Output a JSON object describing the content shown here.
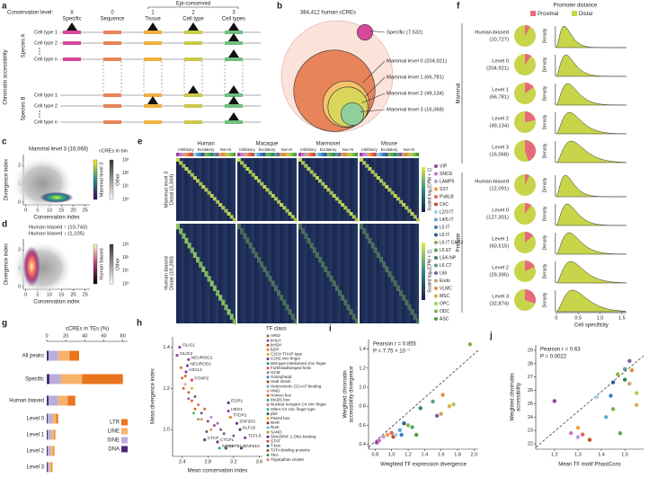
{
  "a": {
    "label": "a",
    "level_title": "Conservation level:",
    "epi": "Epi-conserved",
    "levels": [
      {
        "code": "X",
        "name": "Specific",
        "color": "#d8489a"
      },
      {
        "code": "0",
        "name": "Sequence",
        "color": "#e8845a"
      },
      {
        "code": "1",
        "name": "Tissue",
        "color": "#f0b040"
      },
      {
        "code": "2",
        "name": "Cell type",
        "color": "#c9c94a"
      },
      {
        "code": "3",
        "name": "Cell types",
        "color": "#6fbf80"
      }
    ],
    "species": [
      "Species A",
      "Species B"
    ],
    "cell_types": [
      "Cell type 1",
      "Cell type 2",
      "Cell type n"
    ],
    "y_label": "Chromatin accessibility"
  },
  "b": {
    "label": "b",
    "title": "384,412 human cCREs",
    "total": 384412,
    "outer_color": "#fbe3da",
    "circles": [
      {
        "label": "Mammal level 0 (204,921)",
        "count": 204921,
        "color": "#e8845a"
      },
      {
        "label": "Mammal level 1 (66,781)",
        "count": 66781,
        "color": "#f5c26b"
      },
      {
        "label": "Mammal level 2 (49,134)",
        "count": 49134,
        "color": "#d9d65b"
      },
      {
        "label": "Mammal level 3 (16,068)",
        "count": 16068,
        "color": "#8fcf9c"
      },
      {
        "label": "Specific (7,532)",
        "count": 7532,
        "color": "#d8489a"
      }
    ]
  },
  "c": {
    "label": "c",
    "title": "Mammal level 3 (16,068)",
    "x_label": "Conservation index",
    "y_label": "Divergence index",
    "xlim": [
      -1,
      27
    ],
    "ylim": [
      -0.15,
      2.6
    ],
    "xticks": [
      0,
      5,
      10,
      15,
      20,
      25
    ],
    "yticks": [
      0,
      1,
      2
    ],
    "colorbar_title": "cCREs in bin",
    "colorbars": [
      "Mammal level 3",
      "Other"
    ],
    "colorbar_ticks": [
      "10³",
      "10²",
      "10¹",
      "10⁰"
    ]
  },
  "d": {
    "label": "d",
    "titles": [
      "Human biased ↑ (10,743)",
      "Human biased ↓ (1,105)"
    ],
    "x_label": "Conservation index",
    "y_label": "Divergence index",
    "xlim": [
      -1,
      27
    ],
    "ylim": [
      -0.15,
      2.6
    ],
    "xticks": [
      0,
      5,
      10,
      15,
      20,
      25
    ],
    "yticks": [
      0,
      1,
      2
    ],
    "colorbars": [
      "Human biased",
      "Other"
    ],
    "colorbar_ticks": [
      "10³",
      "10²",
      "10¹",
      "10⁰"
    ]
  },
  "e": {
    "label": "e",
    "species": [
      "Human",
      "Macaque",
      "Marmoset",
      "Mouse"
    ],
    "groups": [
      "Inhibitory",
      "Excitatory",
      "Non-N"
    ],
    "blocks": [
      {
        "name": "Mammal level 3",
        "sub": "Distal (3,344)"
      },
      {
        "name": "Human biased",
        "sub": "Distal (10,280)"
      }
    ],
    "colorbar_label": "Scaled log₂[CPM + 1]",
    "cell_types": [
      {
        "name": "VIP",
        "color": "#9b3fa0"
      },
      {
        "name": "SNCG",
        "color": "#d46fc1"
      },
      {
        "name": "LAMP5",
        "color": "#b7a0d3"
      },
      {
        "name": "SST",
        "color": "#f29c3a"
      },
      {
        "name": "PVALB",
        "color": "#e8615a"
      },
      {
        "name": "ChC",
        "color": "#c94b2a"
      },
      {
        "name": "L2/3 IT",
        "color": "#9fd3e6"
      },
      {
        "name": "L4/5 IT",
        "color": "#5aa9d6"
      },
      {
        "name": "L5 IT",
        "color": "#3a7fbd"
      },
      {
        "name": "L6 IT",
        "color": "#2d5e9e"
      },
      {
        "name": "L6 IT CAR3",
        "color": "#8ab04a"
      },
      {
        "name": "L5 ET",
        "color": "#4bae62"
      },
      {
        "name": "L5/6 NP",
        "color": "#2f8a55"
      },
      {
        "name": "L6 CT",
        "color": "#5e9c8f"
      },
      {
        "name": "L6b",
        "color": "#7b5ea7"
      },
      {
        "name": "Endo",
        "color": "#c9a36a"
      },
      {
        "name": "VLMC",
        "color": "#e58a3a"
      },
      {
        "name": "MSC",
        "color": "#d9b341"
      },
      {
        "name": "OPC",
        "color": "#a6cf52"
      },
      {
        "name": "ODC",
        "color": "#79b648"
      },
      {
        "name": "ASC",
        "color": "#4e9d3a"
      }
    ]
  },
  "f": {
    "label": "f",
    "title": "Promoter distance",
    "legend": [
      {
        "name": "Proximal",
        "color": "#e86a7a"
      },
      {
        "name": "Distal",
        "color": "#c8d44a"
      }
    ],
    "groups": [
      {
        "name": "Mammal",
        "rows": [
          {
            "name": "Human-biased",
            "count": "(10,727)",
            "proximal": 8
          },
          {
            "name": "Level 0",
            "count": "(204,921)",
            "proximal": 10
          },
          {
            "name": "Level 1",
            "count": "(66,781)",
            "proximal": 15
          },
          {
            "name": "Level 2",
            "count": "(49,134)",
            "proximal": 22
          },
          {
            "name": "Level 3",
            "count": "(16,068)",
            "proximal": 45
          }
        ]
      },
      {
        "name": "Primate",
        "rows": [
          {
            "name": "Human-biased",
            "count": "(12,091)",
            "proximal": 7
          },
          {
            "name": "Level 0",
            "count": "(127,301)",
            "proximal": 10
          },
          {
            "name": "Level 1",
            "count": "(60,515)",
            "proximal": 14
          },
          {
            "name": "Level 2",
            "count": "(29,395)",
            "proximal": 18
          },
          {
            "name": "Level 3",
            "count": "(32,874)",
            "proximal": 30
          }
        ]
      }
    ],
    "density_label": "Density",
    "xlim": [
      -0.1,
      1.75
    ],
    "xticks": [
      0,
      0.5,
      {
        "value": 1,
        "label": "1.0"
      },
      1.5
    ],
    "x_label": "Cell specificity"
  },
  "g": {
    "label": "g",
    "title": "cCREs in TEs (%)",
    "xlim": [
      0,
      85
    ],
    "xticks": [
      0,
      20,
      40,
      60,
      80
    ],
    "categories": [
      "All peaks",
      "Specific",
      "Human biased",
      "Level 0",
      "Level 1",
      "Level 2",
      "Level 3"
    ],
    "series": [
      {
        "name": "DNA",
        "color": "#4b2a7a",
        "values": [
          2,
          3,
          2,
          1,
          1,
          1,
          1
        ]
      },
      {
        "name": "SINE",
        "color": "#b9aedb",
        "values": [
          10,
          12,
          10,
          5,
          4,
          3,
          2
        ]
      },
      {
        "name": "LINE",
        "color": "#f6b26b",
        "values": [
          12,
          22,
          10,
          4,
          3,
          3,
          2
        ]
      },
      {
        "name": "LTR",
        "color": "#e8741e",
        "values": [
          10,
          43,
          8,
          2,
          1,
          1,
          1
        ]
      }
    ]
  },
  "h": {
    "label": "h",
    "x_label": "Mean conservation index",
    "y_label": "Mean divergence index",
    "xlim": [
      2.25,
      3.65
    ],
    "ylim": [
      0.87,
      1.45
    ],
    "xticks": [
      2.4,
      2.8,
      3.2,
      3.6
    ],
    "yticks": [
      {
        "value": 1,
        "label": "1.0"
      },
      1.2,
      1.4
    ],
    "legend_title": "TF class",
    "classes": [
      {
        "name": "ARID",
        "color": "#8c6d31"
      },
      {
        "name": "bHLH",
        "color": "#8e44ad"
      },
      {
        "name": "bHSH",
        "color": "#c0392b"
      },
      {
        "name": "bZIP",
        "color": "#e67e22"
      },
      {
        "name": "C2CH THAP type",
        "color": "#d4ac0d"
      },
      {
        "name": "C2H2 zinc finger",
        "color": "#6c3483"
      },
      {
        "name": "DM-type intertwined zinc finger",
        "color": "#16a085"
      },
      {
        "name": "Forkhead/winged helix",
        "color": "#e74c3c"
      },
      {
        "name": "GCM",
        "color": "#7f8c8d"
      },
      {
        "name": "Grainyhead",
        "color": "#2e86c1"
      },
      {
        "name": "Heat shock",
        "color": "#a04000"
      },
      {
        "name": "Heteromeric CCAAT binding",
        "color": "#5dade2"
      },
      {
        "name": "HMG",
        "color": "#f1948a"
      },
      {
        "name": "Homeo box",
        "color": "#d35400"
      },
      {
        "name": "MADS box",
        "color": "#27ae60"
      },
      {
        "name": "Nuclear receptor C4 zinc finger",
        "color": "#af7ac5"
      },
      {
        "name": "Other C4 zinc finger type",
        "color": "#1abc9c"
      },
      {
        "name": "p53",
        "color": "#34495e"
      },
      {
        "name": "Paired box",
        "color": "#f39c12"
      },
      {
        "name": "RHR",
        "color": "#922b21"
      },
      {
        "name": "Runt",
        "color": "#48c9b0"
      },
      {
        "name": "SAND",
        "color": "#b7950b"
      },
      {
        "name": "SMAD/NF-1 DNA binding",
        "color": "#5b2c6f"
      },
      {
        "name": "STAT",
        "color": "#cb4335"
      },
      {
        "name": "T-box",
        "color": "#1f618d"
      },
      {
        "name": "TATA-binding proteins",
        "color": "#7d6608"
      },
      {
        "name": "TEA",
        "color": "#239b56"
      },
      {
        "name": "Tryptophan cluster",
        "color": "#ec7063"
      }
    ],
    "points": [
      {
        "x": 2.4,
        "y": 1.25,
        "class": 13
      },
      {
        "x": 2.42,
        "y": 1.2,
        "class": 13
      },
      {
        "x": 2.45,
        "y": 1.22,
        "class": 12
      },
      {
        "x": 2.5,
        "y": 1.18,
        "class": 13
      },
      {
        "x": 2.5,
        "y": 1.15,
        "class": 1
      },
      {
        "x": 2.55,
        "y": 1.14,
        "class": 13
      },
      {
        "x": 2.6,
        "y": 1.16,
        "class": 5
      },
      {
        "x": 2.6,
        "y": 1.1,
        "class": 13
      },
      {
        "x": 2.65,
        "y": 1.12,
        "class": 7
      },
      {
        "x": 2.7,
        "y": 1.08,
        "class": 5
      },
      {
        "x": 2.7,
        "y": 1.05,
        "class": 3
      },
      {
        "x": 2.75,
        "y": 1.1,
        "class": 13
      },
      {
        "x": 2.8,
        "y": 1.04,
        "class": 5
      },
      {
        "x": 2.85,
        "y": 1.06,
        "class": 15
      },
      {
        "x": 2.9,
        "y": 1.02,
        "class": 5
      },
      {
        "x": 2.95,
        "y": 1.03,
        "class": 1
      },
      {
        "x": 3.0,
        "y": 1.0,
        "class": 5
      },
      {
        "x": 3.05,
        "y": 0.98,
        "class": 5
      },
      {
        "x": 2.55,
        "y": 1.2,
        "class": 18
      },
      {
        "x": 2.45,
        "y": 1.26,
        "class": 13
      },
      {
        "x": 2.65,
        "y": 1.05,
        "class": 8
      },
      {
        "x": 2.85,
        "y": 1.0,
        "class": 3
      },
      {
        "x": 3.2,
        "y": 0.97,
        "class": 5
      },
      {
        "x": 2.38,
        "y": 1.3,
        "class": 13
      },
      {
        "x": 2.58,
        "y": 1.08,
        "class": 14
      },
      {
        "x": 2.78,
        "y": 0.99,
        "class": 22
      }
    ],
    "labeled": [
      {
        "name": "OLIG1",
        "x": 2.36,
        "y": 1.4,
        "class": 1
      },
      {
        "name": "OLIG2",
        "x": 2.32,
        "y": 1.36,
        "class": 1
      },
      {
        "name": "NEUROG1",
        "x": 2.5,
        "y": 1.34,
        "class": 1
      },
      {
        "name": "NEUROD2",
        "x": 2.48,
        "y": 1.31,
        "class": 1
      },
      {
        "name": "ASCL1",
        "x": 2.46,
        "y": 1.28,
        "class": 1
      },
      {
        "name": "FOXP2",
        "x": 2.55,
        "y": 1.24,
        "class": 7
      },
      {
        "name": "EGR1",
        "x": 3.12,
        "y": 1.13,
        "class": 5
      },
      {
        "name": "HES1",
        "x": 3.12,
        "y": 1.09,
        "class": 1
      },
      {
        "name": "TFDP1",
        "x": 3.15,
        "y": 1.06,
        "class": 3
      },
      {
        "name": "ZNF263",
        "x": 3.25,
        "y": 1.03,
        "class": 5
      },
      {
        "name": "KLF15",
        "x": 3.3,
        "y": 1.0,
        "class": 5
      },
      {
        "name": "CTCF",
        "x": 2.75,
        "y": 0.95,
        "class": 5
      },
      {
        "name": "CTCFL",
        "x": 2.95,
        "y": 0.94,
        "class": 5
      },
      {
        "name": "NRF1",
        "x": 2.98,
        "y": 0.91,
        "class": 16
      },
      {
        "name": "ZBTB14",
        "x": 3.08,
        "y": 0.91,
        "class": 5
      },
      {
        "name": "TCFL5",
        "x": 3.38,
        "y": 0.96,
        "class": 1
      },
      {
        "name": "ZNF610",
        "x": 3.32,
        "y": 0.91,
        "class": 5
      }
    ]
  },
  "i": {
    "label": "i",
    "stats": [
      "Pearson r = 0.855",
      "P = 7.75 × 10⁻⁷"
    ],
    "x_label": "Weighted TF expression divergence",
    "y_label": [
      "Weighted chromatin",
      "accessibility divergence"
    ],
    "xlim": [
      0.72,
      2.05
    ],
    "ylim": [
      0.35,
      1.5
    ],
    "xticks": [
      0.8,
      {
        "value": 1,
        "label": "1.0"
      },
      1.2,
      1.4,
      1.6,
      1.8,
      {
        "value": 2,
        "label": "2.0"
      }
    ],
    "yticks": [
      0.4,
      0.6,
      0.8,
      {
        "value": 1,
        "label": "1.0"
      },
      1.2,
      1.4
    ],
    "points": [
      {
        "x": 0.82,
        "y": 0.42,
        "color": "#9b3fa0"
      },
      {
        "x": 0.85,
        "y": 0.44,
        "color": "#d46fc1"
      },
      {
        "x": 0.9,
        "y": 0.48,
        "color": "#b7a0d3"
      },
      {
        "x": 0.95,
        "y": 0.5,
        "color": "#f29c3a"
      },
      {
        "x": 1.0,
        "y": 0.52,
        "color": "#e8615a"
      },
      {
        "x": 1.02,
        "y": 0.48,
        "color": "#c94b2a"
      },
      {
        "x": 1.05,
        "y": 0.5,
        "color": "#9fd3e6"
      },
      {
        "x": 1.1,
        "y": 0.55,
        "color": "#5aa9d6"
      },
      {
        "x": 1.12,
        "y": 0.5,
        "color": "#3a7fbd"
      },
      {
        "x": 1.15,
        "y": 0.62,
        "color": "#2d5e9e"
      },
      {
        "x": 1.2,
        "y": 0.6,
        "color": "#8ab04a"
      },
      {
        "x": 1.25,
        "y": 0.58,
        "color": "#4bae62"
      },
      {
        "x": 1.35,
        "y": 0.78,
        "color": "#2f8a55"
      },
      {
        "x": 1.5,
        "y": 0.85,
        "color": "#5e9c8f"
      },
      {
        "x": 1.55,
        "y": 0.7,
        "color": "#7b5ea7"
      },
      {
        "x": 1.6,
        "y": 0.72,
        "color": "#c9a36a"
      },
      {
        "x": 1.62,
        "y": 0.92,
        "color": "#e58a3a"
      },
      {
        "x": 1.7,
        "y": 0.8,
        "color": "#d9b341"
      },
      {
        "x": 1.75,
        "y": 0.82,
        "color": "#a6cf52"
      },
      {
        "x": 1.95,
        "y": 1.45,
        "color": "#79b648"
      },
      {
        "x": 1.3,
        "y": 0.5,
        "color": "#4e9d3a"
      }
    ]
  },
  "j": {
    "label": "j",
    "stats": [
      "Pearson r = 0.63",
      "P = 0.0022"
    ],
    "x_label": "Mean TF motif PhastCons",
    "y_label": [
      "Weighted chromatin",
      "accessibility"
    ],
    "xlim": [
      1.12,
      1.58
    ],
    "ylim": [
      21.6,
      29.4
    ],
    "xticks": [
      1.2,
      1.3,
      1.4,
      1.5
    ],
    "yticks": [
      22,
      23,
      24,
      25,
      26,
      27,
      28,
      29
    ],
    "points": [
      {
        "x": 1.2,
        "y": 25.2,
        "color": "#9b3fa0"
      },
      {
        "x": 1.27,
        "y": 22.8,
        "color": "#d46fc1"
      },
      {
        "x": 1.3,
        "y": 22.5,
        "color": "#b7a0d3"
      },
      {
        "x": 1.3,
        "y": 23.2,
        "color": "#f29c3a"
      },
      {
        "x": 1.32,
        "y": 22.7,
        "color": "#e8615a"
      },
      {
        "x": 1.35,
        "y": 22.3,
        "color": "#c94b2a"
      },
      {
        "x": 1.38,
        "y": 25.5,
        "color": "#9fd3e6"
      },
      {
        "x": 1.42,
        "y": 24.0,
        "color": "#5aa9d6"
      },
      {
        "x": 1.44,
        "y": 25.6,
        "color": "#3a7fbd"
      },
      {
        "x": 1.45,
        "y": 26.6,
        "color": "#2d5e9e"
      },
      {
        "x": 1.47,
        "y": 27.2,
        "color": "#8ab04a"
      },
      {
        "x": 1.48,
        "y": 22.8,
        "color": "#4bae62"
      },
      {
        "x": 1.5,
        "y": 26.8,
        "color": "#2f8a55"
      },
      {
        "x": 1.5,
        "y": 27.6,
        "color": "#5e9c8f"
      },
      {
        "x": 1.52,
        "y": 28.2,
        "color": "#7b5ea7"
      },
      {
        "x": 1.52,
        "y": 26.5,
        "color": "#c9a36a"
      },
      {
        "x": 1.53,
        "y": 27.5,
        "color": "#e58a3a"
      },
      {
        "x": 1.55,
        "y": 24.9,
        "color": "#d9b341"
      },
      {
        "x": 1.55,
        "y": 25.8,
        "color": "#a6cf52"
      },
      {
        "x": 1.45,
        "y": 24.6,
        "color": "#79b648"
      }
    ]
  }
}
